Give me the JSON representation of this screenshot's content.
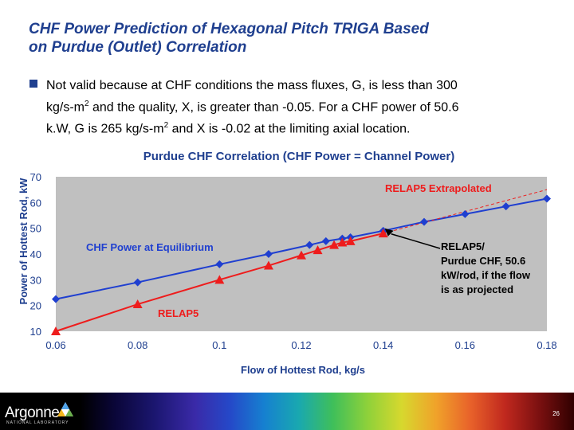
{
  "slide": {
    "title_lines": [
      "CHF Power Prediction of Hexagonal Pitch TRIGA Based",
      "on Purdue (Outlet) Correlation"
    ],
    "bullet": {
      "line1": "Not valid because at CHF conditions the mass fluxes, G, is less than 300",
      "line2_pre": "kg/s-m",
      "line2_sup": "2",
      "line2_post": " and the quality, X, is greater than -0.05.  For a CHF power of 50.6",
      "line3_pre": "k.W, G is 265 kg/s-m",
      "line3_sup": "2",
      "line3_post": " and X is -0.02 at the limiting axial location."
    },
    "page_number": "26",
    "logo": {
      "text": "Argonne",
      "subtext": "NATIONAL LABORATORY"
    }
  },
  "chart_data": {
    "type": "line",
    "title": "Purdue CHF Correlation (CHF Power = Channel Power)",
    "xlabel": "Flow of Hottest Rod, kg/s",
    "ylabel": "Power of Hottest Rod, kW",
    "xlim": [
      0.06,
      0.18
    ],
    "ylim": [
      10,
      70
    ],
    "xticks": [
      0.06,
      0.08,
      0.1,
      0.12,
      0.14,
      0.16,
      0.18
    ],
    "xtick_labels": [
      "0.06",
      "0.08",
      "0.1",
      "0.12",
      "0.14",
      "0.16",
      "0.18"
    ],
    "yticks": [
      10,
      20,
      30,
      40,
      50,
      60,
      70
    ],
    "ytick_labels": [
      "10",
      "20",
      "30",
      "40",
      "50",
      "60",
      "70"
    ],
    "colors": {
      "plot_bg": "#c0c0c0",
      "equilibrium": "#1f3fd0",
      "relap5": "#ee1c1c",
      "extrapolated": "#ee1c1c",
      "title": "#1f3f8f"
    },
    "series": [
      {
        "name": "CHF Power at Equilibrium",
        "marker": "diamond",
        "x": [
          0.06,
          0.08,
          0.1,
          0.112,
          0.122,
          0.126,
          0.13,
          0.132,
          0.14,
          0.15,
          0.16,
          0.17,
          0.18
        ],
        "y": [
          22.5,
          29,
          36,
          40,
          43.5,
          45,
          46,
          46.5,
          49,
          52.5,
          55.5,
          58.5,
          61.5
        ]
      },
      {
        "name": "RELAP5",
        "marker": "triangle",
        "x": [
          0.06,
          0.08,
          0.1,
          0.112,
          0.12,
          0.124,
          0.128,
          0.13,
          0.132,
          0.14
        ],
        "y": [
          10,
          20.5,
          30,
          35.5,
          39.5,
          41.5,
          43.5,
          44.5,
          45,
          48
        ]
      },
      {
        "name": "RELAP5 Extrapolated",
        "style": "dashed",
        "x": [
          0.14,
          0.18
        ],
        "y": [
          48,
          65
        ]
      }
    ],
    "annotations": {
      "extrapolated": "RELAP5 Extrapolated",
      "equilibrium": "CHF Power at Equilibrium",
      "relap5": "RELAP5",
      "callout_lines": [
        "RELAP5/",
        "Purdue CHF, 50.6",
        "kW/rod, if the flow",
        "is as projected"
      ],
      "callout_point": {
        "x": 0.14,
        "y": 50.6
      }
    }
  }
}
